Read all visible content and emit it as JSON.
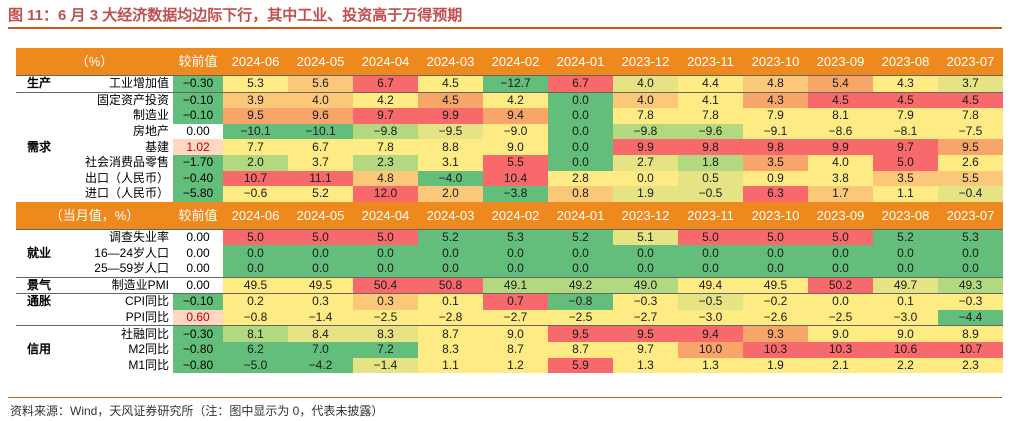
{
  "title": "图 11：6 月 3 大经济数据均边际下行，其中工业、投资高于万得预期",
  "source": "资料来源：Wind，天风证券研究所（注：图中显示为 0，代表未披露）",
  "months": [
    "2024-06",
    "2024-05",
    "2024-04",
    "2024-03",
    "2024-02",
    "2024-01",
    "2023-12",
    "2023-11",
    "2023-10",
    "2023-09",
    "2023-08",
    "2023-07"
  ],
  "prev_header": "较前值",
  "colors": {
    "red": "#f8696b",
    "orange": "#f8a56a",
    "lightorange": "#fbc87a",
    "yellow": "#ffeb84",
    "lightyellow": "#e6e384",
    "lightgreen": "#b3d980",
    "green": "#63be7b",
    "prev_pos": "#ffd7c2"
  },
  "table1": {
    "unit_header": "（%）",
    "rows": [
      {
        "section": "生产",
        "indicator": "工业增加值",
        "change": "−0.30",
        "values": [
          "5.3",
          "5.6",
          "6.7",
          "4.5",
          "−12.7",
          "6.7",
          "4.0",
          "4.4",
          "4.8",
          "5.4",
          "4.3",
          "3.7"
        ]
      },
      {
        "section": "",
        "indicator": "固定资产投资",
        "change": "−0.10",
        "values": [
          "3.9",
          "4.0",
          "4.2",
          "4.5",
          "4.2",
          "0.0",
          "4.0",
          "4.1",
          "4.3",
          "4.5",
          "4.5",
          "4.5"
        ]
      },
      {
        "section": "",
        "indicator": "制造业",
        "change": "−0.10",
        "values": [
          "9.5",
          "9.6",
          "9.7",
          "9.9",
          "9.4",
          "0.0",
          "7.8",
          "7.8",
          "7.9",
          "8.1",
          "7.9",
          "7.8"
        ]
      },
      {
        "section": "",
        "indicator": "房地产",
        "change": "0.00",
        "values": [
          "−10.1",
          "−10.1",
          "−9.8",
          "−9.5",
          "−9.0",
          "0.0",
          "−9.8",
          "−9.6",
          "−9.1",
          "−8.6",
          "−8.1",
          "−7.5"
        ]
      },
      {
        "section": "需求",
        "indicator": "基建",
        "change": "1.02",
        "values": [
          "7.7",
          "6.7",
          "7.8",
          "8.8",
          "9.0",
          "0.0",
          "9.9",
          "9.8",
          "9.8",
          "9.9",
          "9.7",
          "9.5"
        ]
      },
      {
        "section": "",
        "indicator": "社会消费品零售",
        "change": "−1.70",
        "values": [
          "2.0",
          "3.7",
          "2.3",
          "3.1",
          "5.5",
          "0.0",
          "2.7",
          "1.8",
          "3.5",
          "4.0",
          "5.0",
          "2.6"
        ]
      },
      {
        "section": "",
        "indicator": "出口（人民币）",
        "change": "−0.40",
        "values": [
          "10.7",
          "11.1",
          "4.8",
          "−4.0",
          "10.4",
          "2.8",
          "0.0",
          "0.5",
          "0.9",
          "3.8",
          "3.5",
          "5.5"
        ]
      },
      {
        "section": "",
        "indicator": "进口（人民币）",
        "change": "−5.80",
        "values": [
          "−0.6",
          "5.2",
          "12.0",
          "2.0",
          "−3.8",
          "0.8",
          "1.9",
          "−0.5",
          "6.3",
          "1.7",
          "1.1",
          "−0.4"
        ]
      }
    ]
  },
  "table2": {
    "unit_header": "（当月值，%）",
    "rows": [
      {
        "section": "",
        "indicator": "调查失业率",
        "change": "0.00",
        "values": [
          "5.0",
          "5.0",
          "5.0",
          "5.2",
          "5.3",
          "5.2",
          "5.1",
          "5.0",
          "5.0",
          "5.0",
          "5.2",
          "5.3"
        ]
      },
      {
        "section": "就业",
        "indicator": "16—24岁人口",
        "change": "0.00",
        "values": [
          "0.0",
          "0.0",
          "0.0",
          "0.0",
          "0.0",
          "0.0",
          "0.0",
          "0.0",
          "0.0",
          "0.0",
          "0.0",
          "0.0"
        ]
      },
      {
        "section": "",
        "indicator": "25—59岁人口",
        "change": "0.00",
        "values": [
          "0.0",
          "0.0",
          "0.0",
          "0.0",
          "0.0",
          "0.0",
          "0.0",
          "0.0",
          "0.0",
          "0.0",
          "0.0",
          "0.0"
        ]
      },
      {
        "section": "景气",
        "indicator": "制造业PMI",
        "change": "0.00",
        "values": [
          "49.5",
          "49.5",
          "50.4",
          "50.8",
          "49.1",
          "49.2",
          "49.0",
          "49.4",
          "49.5",
          "50.2",
          "49.7",
          "49.3"
        ]
      },
      {
        "section": "通胀",
        "indicator": "CPI同比",
        "change": "−0.10",
        "values": [
          "0.2",
          "0.3",
          "0.3",
          "0.1",
          "0.7",
          "−0.8",
          "−0.3",
          "−0.5",
          "−0.2",
          "0.0",
          "0.1",
          "−0.3"
        ]
      },
      {
        "section": "",
        "indicator": "PPI同比",
        "change": "0.60",
        "values": [
          "−0.8",
          "−1.4",
          "−2.5",
          "−2.8",
          "−2.7",
          "−2.5",
          "−2.7",
          "−3.0",
          "−2.6",
          "−2.5",
          "−3.0",
          "−4.4"
        ]
      },
      {
        "section": "",
        "indicator": "社融同比",
        "change": "−0.30",
        "values": [
          "8.1",
          "8.4",
          "8.3",
          "8.7",
          "9.0",
          "9.5",
          "9.5",
          "9.4",
          "9.3",
          "9.0",
          "9.0",
          "8.9"
        ]
      },
      {
        "section": "信用",
        "indicator": "M2同比",
        "change": "−0.80",
        "values": [
          "6.2",
          "7.0",
          "7.2",
          "8.3",
          "8.7",
          "8.7",
          "9.7",
          "10.0",
          "10.3",
          "10.3",
          "10.6",
          "10.7"
        ]
      },
      {
        "section": "",
        "indicator": "M1同比",
        "change": "−0.80",
        "values": [
          "−5.0",
          "−4.2",
          "−1.4",
          "1.1",
          "1.2",
          "5.9",
          "1.3",
          "1.3",
          "1.9",
          "2.1",
          "2.2",
          "2.3"
        ]
      }
    ]
  },
  "cell_colors": {
    "table1": [
      [
        "yellow",
        "lightorange",
        "red",
        "yellow",
        "green",
        "red",
        "lightyellow",
        "yellow",
        "lightorange",
        "orange",
        "yellow",
        "lightyellow"
      ],
      [
        "lightorange",
        "lightorange",
        "yellow",
        "orange",
        "yellow",
        "green",
        "lightorange",
        "yellow",
        "orange",
        "red",
        "red",
        "red"
      ],
      [
        "orange",
        "orange",
        "red",
        "red",
        "orange",
        "green",
        "yellow",
        "yellow",
        "yellow",
        "yellow",
        "yellow",
        "yellow"
      ],
      [
        "green",
        "green",
        "lightgreen",
        "lightyellow",
        "yellow",
        "green",
        "lightgreen",
        "lightgreen",
        "yellow",
        "yellow",
        "yellow",
        "yellow"
      ],
      [
        "yellow",
        "yellow",
        "yellow",
        "yellow",
        "yellow",
        "green",
        "red",
        "red",
        "red",
        "red",
        "red",
        "orange"
      ],
      [
        "lightgreen",
        "yellow",
        "lightgreen",
        "yellow",
        "red",
        "green",
        "lightyellow",
        "lightgreen",
        "orange",
        "yellow",
        "red",
        "yellow"
      ],
      [
        "red",
        "red",
        "lightorange",
        "green",
        "red",
        "yellow",
        "yellow",
        "lightyellow",
        "yellow",
        "yellow",
        "lightorange",
        "lightorange"
      ],
      [
        "yellow",
        "yellow",
        "red",
        "lightorange",
        "green",
        "lightorange",
        "lightyellow",
        "lightyellow",
        "red",
        "lightorange",
        "yellow",
        "lightyellow"
      ]
    ],
    "table2": [
      [
        "red",
        "red",
        "red",
        "green",
        "green",
        "green",
        "lightyellow",
        "red",
        "red",
        "red",
        "green",
        "green"
      ],
      [
        "green",
        "green",
        "green",
        "green",
        "green",
        "green",
        "green",
        "green",
        "green",
        "green",
        "green",
        "green"
      ],
      [
        "green",
        "green",
        "green",
        "green",
        "green",
        "green",
        "green",
        "green",
        "green",
        "green",
        "green",
        "green"
      ],
      [
        "yellow",
        "yellow",
        "red",
        "red",
        "lightgreen",
        "lightgreen",
        "lightgreen",
        "yellow",
        "yellow",
        "red",
        "lightyellow",
        "lightgreen"
      ],
      [
        "yellow",
        "yellow",
        "lightorange",
        "yellow",
        "red",
        "green",
        "yellow",
        "lightyellow",
        "yellow",
        "yellow",
        "yellow",
        "yellow"
      ],
      [
        "yellow",
        "yellow",
        "yellow",
        "yellow",
        "yellow",
        "yellow",
        "yellow",
        "yellow",
        "yellow",
        "yellow",
        "yellow",
        "green"
      ],
      [
        "lightgreen",
        "lightyellow",
        "lightyellow",
        "yellow",
        "yellow",
        "red",
        "red",
        "red",
        "orange",
        "yellow",
        "yellow",
        "yellow"
      ],
      [
        "green",
        "green",
        "green",
        "yellow",
        "yellow",
        "yellow",
        "yellow",
        "orange",
        "red",
        "red",
        "red",
        "red"
      ],
      [
        "green",
        "green",
        "lightyellow",
        "yellow",
        "yellow",
        "red",
        "yellow",
        "yellow",
        "yellow",
        "yellow",
        "yellow",
        "yellow"
      ]
    ]
  },
  "change_colors": {
    "table1": [
      "green",
      "green",
      "green",
      "",
      "prev_pos",
      "green",
      "green",
      "green"
    ],
    "table2": [
      "",
      "",
      "",
      "",
      "green",
      "prev_pos",
      "green",
      "green",
      "green"
    ]
  }
}
